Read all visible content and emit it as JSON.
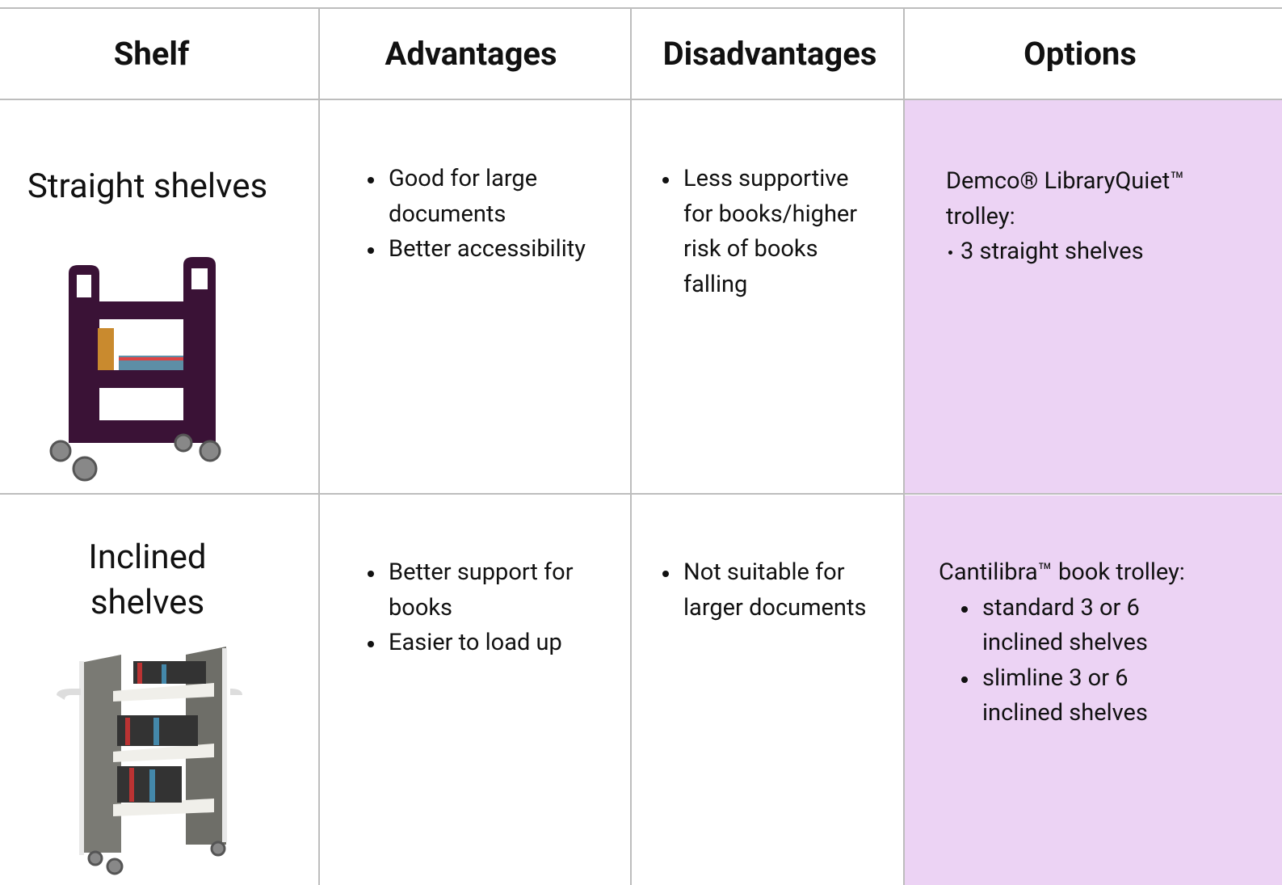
{
  "table": {
    "headers": [
      "Shelf",
      "Advantages",
      "Disadvantages",
      "Options"
    ],
    "rows": [
      {
        "shelf": "Straight shelves",
        "advantages": [
          "Good for large documents",
          "Better accessibility"
        ],
        "disadvantages": [
          "Less supportive for books/higher risk of books falling"
        ],
        "options": {
          "title": "Demco® LibraryQuiet™ trolley:",
          "items": [
            "3 straight shelves"
          ]
        }
      },
      {
        "shelf": "Inclined shelves",
        "advantages": [
          "Better support for books",
          "Easier to load up"
        ],
        "disadvantages": [
          "Not suitable for larger documents"
        ],
        "options": {
          "title": "Cantilibra™ book trolley:",
          "items": [
            "standard 3 or 6 inclined shelves",
            "slimline 3 or 6 inclined shelves"
          ]
        }
      }
    ]
  }
}
